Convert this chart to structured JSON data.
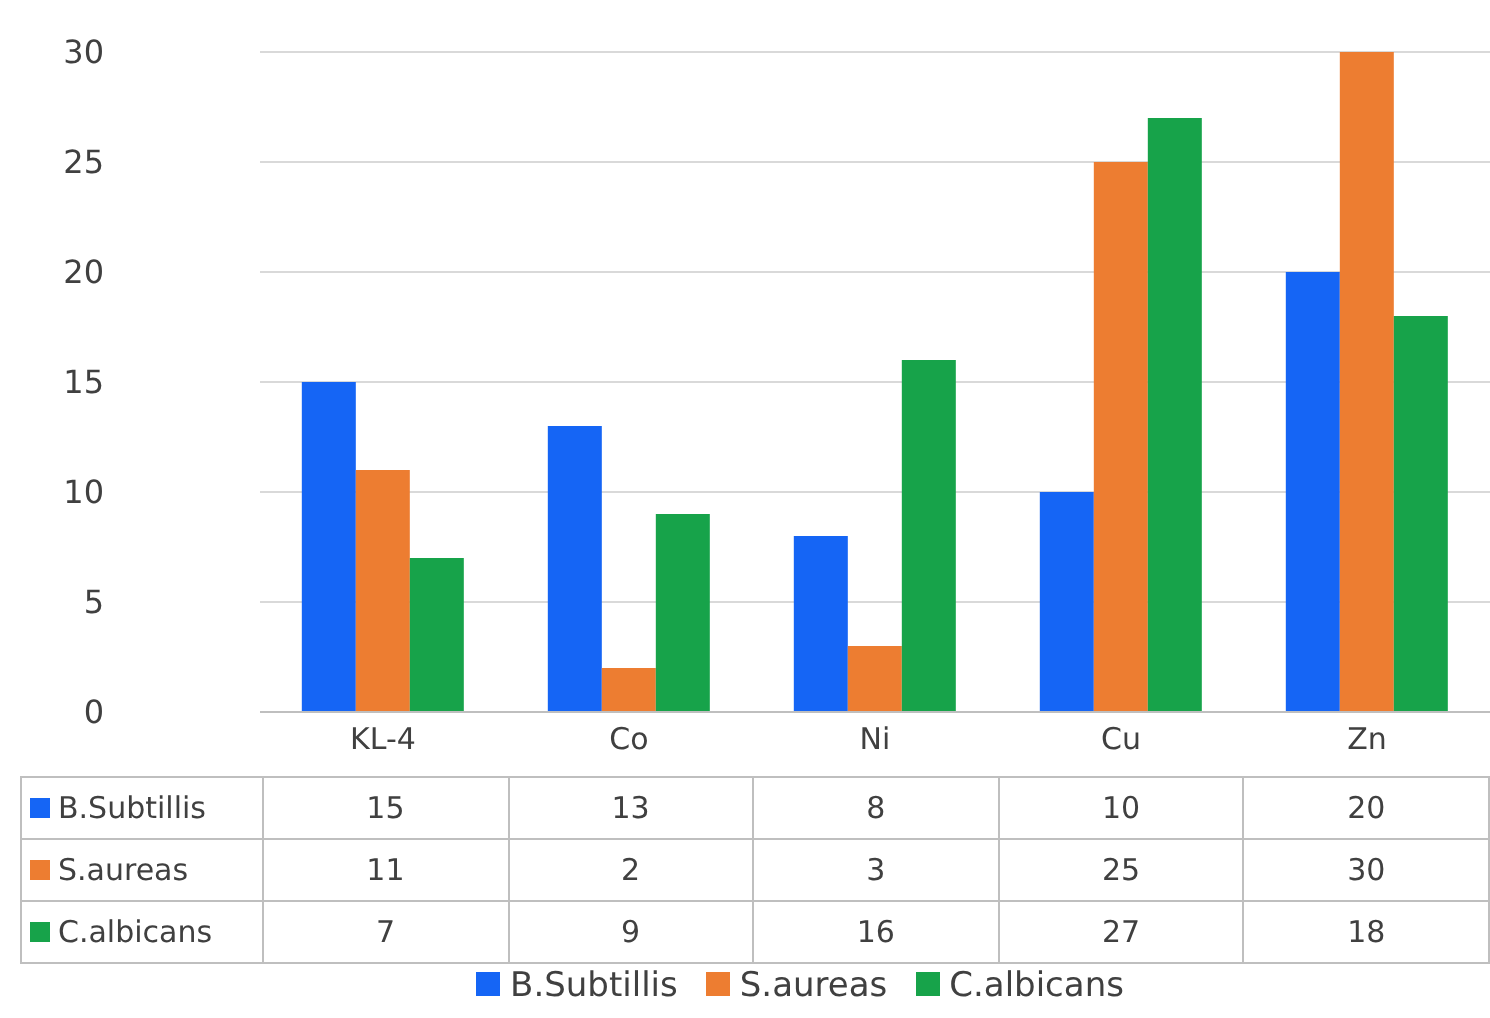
{
  "chart_data": {
    "type": "bar",
    "categories": [
      "KL-4",
      "Co",
      "Ni",
      "Cu",
      "Zn"
    ],
    "series": [
      {
        "name": "B.Subtillis",
        "color": "#1565f5",
        "values": [
          15,
          13,
          8,
          10,
          20
        ]
      },
      {
        "name": "S.aureas",
        "color": "#ed7d31",
        "values": [
          11,
          2,
          3,
          25,
          30
        ]
      },
      {
        "name": "C.albicans",
        "color": "#17a34a",
        "values": [
          7,
          9,
          16,
          27,
          18
        ]
      }
    ],
    "ylim": [
      0,
      30
    ],
    "yticks": [
      0,
      5,
      10,
      15,
      20,
      25,
      30
    ],
    "grid": "y",
    "legend": "bottom",
    "data_labels": true
  }
}
